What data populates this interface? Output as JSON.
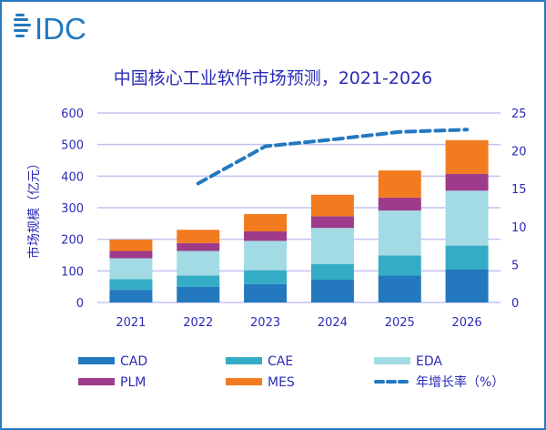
{
  "logo": {
    "text": "IDC"
  },
  "chart_data": {
    "type": "bar",
    "stacked": true,
    "title": "中国核心工业软件市场预测，2021-2026",
    "ylabel": "市场规模（亿元）",
    "xlabel": "",
    "categories": [
      "2021",
      "2022",
      "2023",
      "2024",
      "2025",
      "2026"
    ],
    "ylim": [
      0,
      600
    ],
    "yticks": [
      0,
      100,
      200,
      300,
      400,
      500,
      600
    ],
    "y2lim": [
      0,
      25
    ],
    "y2ticks": [
      0,
      5,
      10,
      15,
      20,
      25
    ],
    "grid": true,
    "legend_position": "bottom",
    "series": [
      {
        "name": "CAD",
        "color": "#2378be",
        "values": [
          40,
          50,
          58,
          72,
          85,
          105
        ]
      },
      {
        "name": "CAE",
        "color": "#35acc6",
        "values": [
          34,
          35,
          44,
          50,
          64,
          75
        ]
      },
      {
        "name": "EDA",
        "color": "#a3dbe5",
        "values": [
          66,
          78,
          93,
          114,
          142,
          174
        ]
      },
      {
        "name": "PLM",
        "color": "#9e3b8b",
        "values": [
          23,
          25,
          30,
          37,
          41,
          53
        ]
      },
      {
        "name": "MES",
        "color": "#f27b20",
        "values": [
          36,
          42,
          55,
          68,
          86,
          107
        ]
      }
    ],
    "line_series": {
      "name": "年增长率（%）",
      "axis": "right",
      "style": "dashed",
      "color": "#2378be",
      "values": [
        null,
        15.7,
        20.6,
        21.5,
        22.5,
        22.8
      ]
    }
  }
}
